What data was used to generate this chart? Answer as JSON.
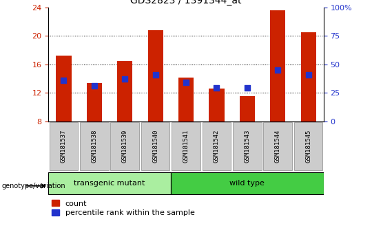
{
  "title": "GDS2823 / 1391344_at",
  "samples": [
    "GSM181537",
    "GSM181538",
    "GSM181539",
    "GSM181540",
    "GSM181541",
    "GSM181542",
    "GSM181543",
    "GSM181544",
    "GSM181545"
  ],
  "red_values": [
    17.2,
    13.4,
    16.5,
    20.8,
    14.2,
    12.6,
    11.6,
    23.6,
    20.5
  ],
  "blue_values": [
    13.8,
    13.0,
    14.0,
    14.5,
    13.5,
    12.7,
    12.7,
    15.2,
    14.5
  ],
  "ylim_left": [
    8,
    24
  ],
  "ylim_right": [
    0,
    100
  ],
  "yticks_left": [
    8,
    12,
    16,
    20,
    24
  ],
  "yticks_right": [
    0,
    25,
    50,
    75,
    100
  ],
  "bar_color": "#cc2200",
  "dot_color": "#2233cc",
  "transgenic_color": "#aaeea0",
  "wildtype_color": "#44cc44",
  "tick_label_bg": "#cccccc",
  "left_tick_color": "#cc2200",
  "right_tick_color": "#2233cc",
  "bar_width": 0.5,
  "dot_size": 30,
  "legend_red": "count",
  "legend_blue": "percentile rank within the sample",
  "geno_label": "genotype/variation",
  "transgenic_label": "transgenic mutant",
  "wildtype_label": "wild type"
}
